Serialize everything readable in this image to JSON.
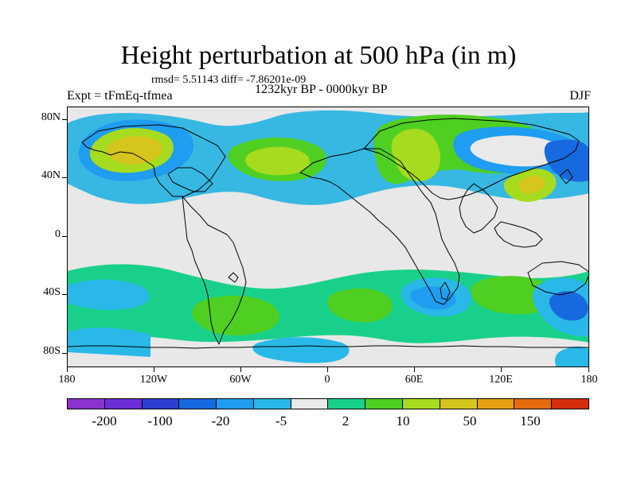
{
  "header": {
    "title": "Height perturbation at 500 hPa (in m)",
    "stats": "rmsd= 5.51143 diff= -7.86201e-09",
    "left_label": "Expt = tFmEq-tfmea",
    "center_label": "1232kyr BP - 0000kyr BP",
    "right_label": "DJF"
  },
  "map": {
    "lat_labels": [
      "80N",
      "40N",
      "0",
      "40S",
      "80S"
    ],
    "lon_labels": [
      "180",
      "120W",
      "60W",
      "0",
      "60E",
      "120E",
      "180"
    ]
  },
  "legend": {
    "colors": [
      "#8b33d1",
      "#6b2ed6",
      "#2d3fd2",
      "#1769df",
      "#1f9df0",
      "#2ab8e8",
      "#e9e9e9",
      "#19d08a",
      "#4fcf21",
      "#a7db1f",
      "#d5c51c",
      "#e79f12",
      "#e56b0e",
      "#d62d0d"
    ],
    "labels": [
      "-200",
      "-100",
      "-20",
      "-5",
      "2",
      "10",
      "50",
      "150"
    ]
  }
}
